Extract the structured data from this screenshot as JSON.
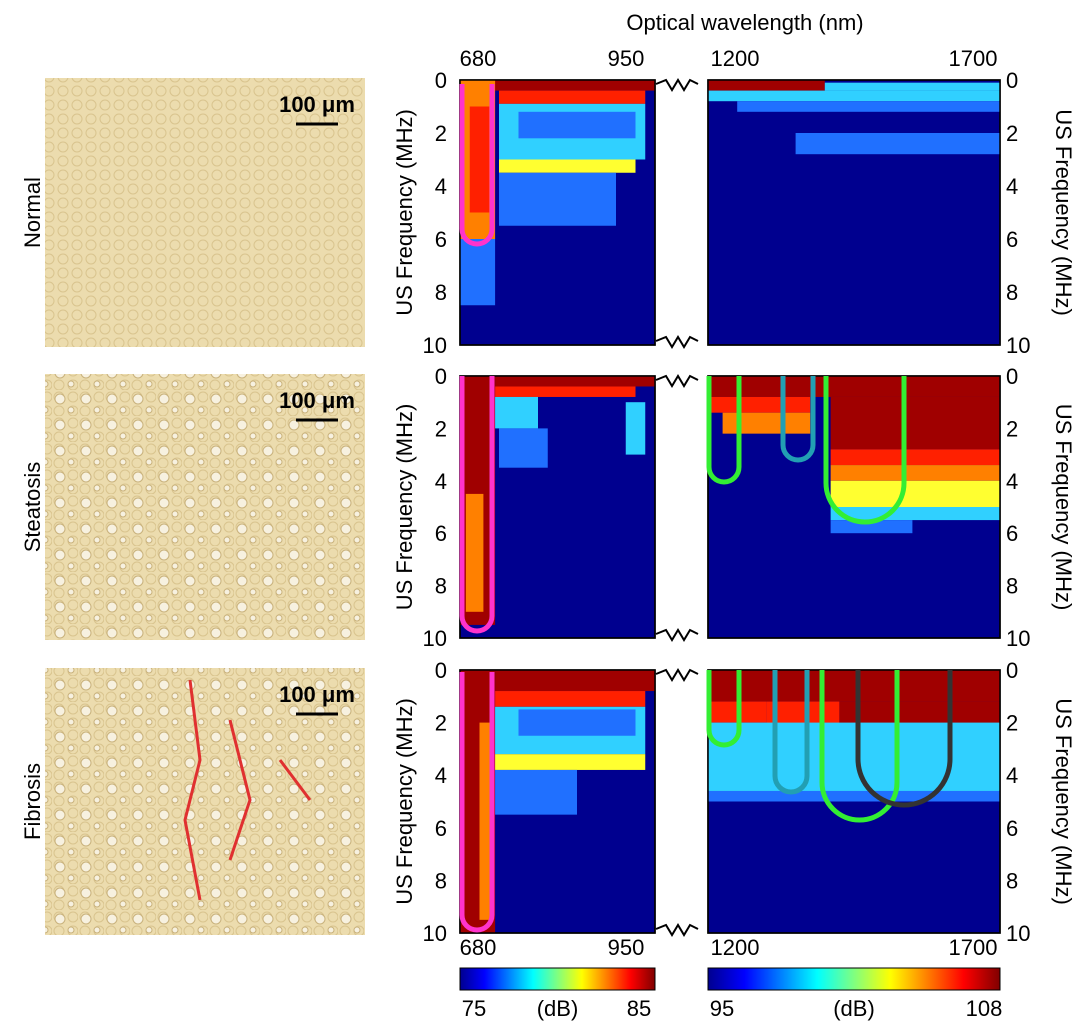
{
  "header": {
    "title": "Optical wavelength (nm)"
  },
  "rows": [
    {
      "label": "Normal",
      "scale_bar": "100 μm"
    },
    {
      "label": "Steatosis",
      "scale_bar": "100 μm"
    },
    {
      "label": "Fibrosis",
      "scale_bar": "100 μm"
    }
  ],
  "axes": {
    "left_x_ticks": [
      "680",
      "950"
    ],
    "right_x_ticks": [
      "1200",
      "1700"
    ],
    "y_ticks": [
      "0",
      "2",
      "4",
      "6",
      "8",
      "10"
    ],
    "y_label": "US Frequency (MHz)"
  },
  "colorbars": [
    {
      "min": "75",
      "unit": "(dB)",
      "max": "85"
    },
    {
      "min": "95",
      "unit": "(dB)",
      "max": "108"
    }
  ]
}
